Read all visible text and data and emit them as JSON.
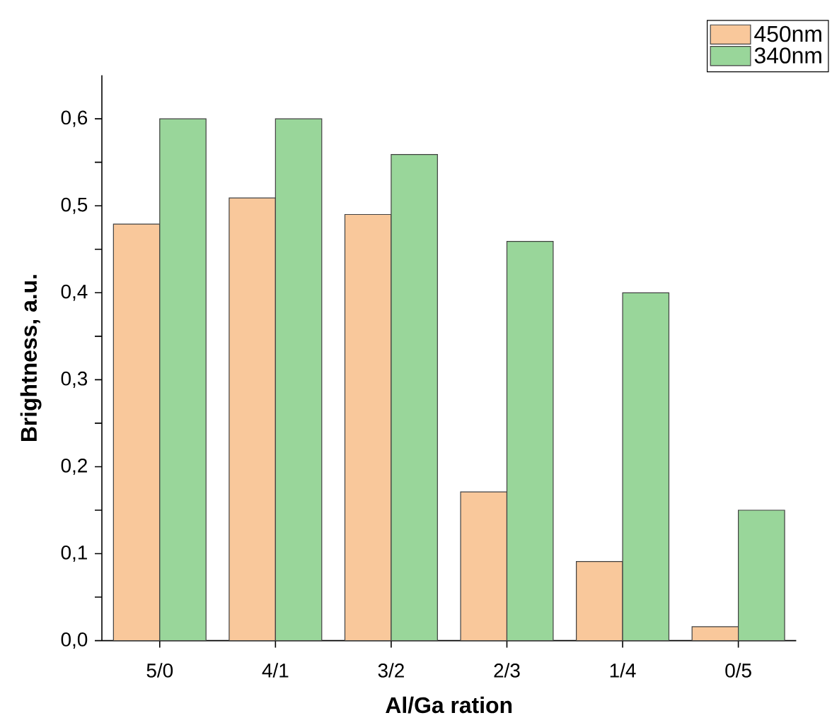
{
  "chart_data": {
    "type": "bar",
    "xlabel": "Al/Ga ration",
    "ylabel": "Brightness, a.u.",
    "categories": [
      "5/0",
      "4/1",
      "3/2",
      "2/3",
      "1/4",
      "0/5"
    ],
    "series": [
      {
        "name": "450nm",
        "color": "#f9c89b",
        "values": [
          0.479,
          0.509,
          0.49,
          0.171,
          0.091,
          0.016
        ]
      },
      {
        "name": "340nm",
        "color": "#99d69a",
        "values": [
          0.6,
          0.6,
          0.559,
          0.459,
          0.4,
          0.15
        ]
      }
    ],
    "ylim": [
      0,
      0.65
    ],
    "yticks": [
      {
        "value": 0,
        "label": "0,0"
      },
      {
        "value": 0.05,
        "label": null
      },
      {
        "value": 0.1,
        "label": "0,1"
      },
      {
        "value": 0.15,
        "label": null
      },
      {
        "value": 0.2,
        "label": "0,2"
      },
      {
        "value": 0.25,
        "label": null
      },
      {
        "value": 0.3,
        "label": "0,3"
      },
      {
        "value": 0.35,
        "label": null
      },
      {
        "value": 0.4,
        "label": "0,4"
      },
      {
        "value": 0.45,
        "label": null
      },
      {
        "value": 0.5,
        "label": "0,5"
      },
      {
        "value": 0.55,
        "label": null
      },
      {
        "value": 0.6,
        "label": "0,6"
      }
    ],
    "legend": "top right"
  }
}
